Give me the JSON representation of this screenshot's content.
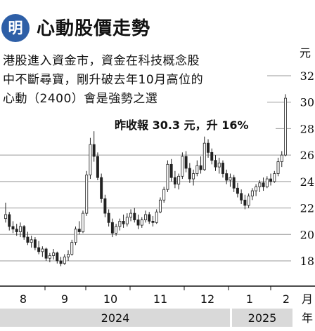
{
  "header": {
    "badge": "明",
    "title": "心動股價走勢"
  },
  "lead_lines": [
    "港股進入資金市，資金在科技概念股",
    "中不斷尋寶，剛升破去年10月高位的",
    "心動（2400）會是強勢之選"
  ],
  "highlight": "昨收報 30.3 元，升 16%",
  "colors": {
    "badge": "#2e5fa7",
    "grid": "#9a9a9a",
    "band": "#d9d9d9",
    "candle": "#222222"
  },
  "chart_data": {
    "type": "candlestick",
    "unit": "元",
    "x_unit": "月",
    "year_unit": "年",
    "ylim": [
      17,
      33
    ],
    "yticks": [
      18,
      20,
      22,
      24,
      26,
      28,
      30,
      32
    ],
    "months": [
      "8",
      "9",
      "10",
      "11",
      "12",
      "1",
      "2"
    ],
    "years": [
      "2024",
      "2025"
    ],
    "grid": true,
    "series": [
      {
        "o": 21.2,
        "h": 22.4,
        "l": 20.9,
        "c": 21.5
      },
      {
        "o": 21.5,
        "h": 21.7,
        "l": 20.3,
        "c": 20.6
      },
      {
        "o": 20.6,
        "h": 21.0,
        "l": 20.1,
        "c": 20.4
      },
      {
        "o": 20.4,
        "h": 20.8,
        "l": 19.9,
        "c": 20.2
      },
      {
        "o": 20.2,
        "h": 20.9,
        "l": 19.8,
        "c": 20.6
      },
      {
        "o": 20.6,
        "h": 20.7,
        "l": 19.6,
        "c": 19.8
      },
      {
        "o": 19.8,
        "h": 20.2,
        "l": 19.2,
        "c": 19.4
      },
      {
        "o": 19.4,
        "h": 19.9,
        "l": 19.0,
        "c": 19.6
      },
      {
        "o": 19.6,
        "h": 19.8,
        "l": 18.8,
        "c": 19.0
      },
      {
        "o": 19.0,
        "h": 19.5,
        "l": 18.5,
        "c": 18.7
      },
      {
        "o": 18.7,
        "h": 19.1,
        "l": 18.3,
        "c": 18.9
      },
      {
        "o": 18.9,
        "h": 19.0,
        "l": 18.0,
        "c": 18.2
      },
      {
        "o": 18.2,
        "h": 18.6,
        "l": 17.9,
        "c": 18.4
      },
      {
        "o": 18.4,
        "h": 18.9,
        "l": 18.1,
        "c": 18.6
      },
      {
        "o": 18.6,
        "h": 18.7,
        "l": 17.8,
        "c": 18.0
      },
      {
        "o": 18.0,
        "h": 18.3,
        "l": 17.6,
        "c": 17.8
      },
      {
        "o": 17.8,
        "h": 18.5,
        "l": 17.7,
        "c": 18.3
      },
      {
        "o": 18.3,
        "h": 18.8,
        "l": 18.0,
        "c": 18.5
      },
      {
        "o": 18.5,
        "h": 19.6,
        "l": 18.4,
        "c": 19.4
      },
      {
        "o": 19.4,
        "h": 20.6,
        "l": 19.2,
        "c": 20.4
      },
      {
        "o": 20.4,
        "h": 21.0,
        "l": 20.0,
        "c": 20.2
      },
      {
        "o": 20.2,
        "h": 21.8,
        "l": 20.1,
        "c": 21.6
      },
      {
        "o": 21.6,
        "h": 24.8,
        "l": 21.4,
        "c": 24.5
      },
      {
        "o": 24.5,
        "h": 27.3,
        "l": 24.2,
        "c": 26.8
      },
      {
        "o": 26.8,
        "h": 27.8,
        "l": 25.5,
        "c": 25.9
      },
      {
        "o": 25.9,
        "h": 26.2,
        "l": 24.1,
        "c": 24.3
      },
      {
        "o": 24.3,
        "h": 24.6,
        "l": 22.4,
        "c": 22.7
      },
      {
        "o": 22.7,
        "h": 23.0,
        "l": 21.3,
        "c": 21.6
      },
      {
        "o": 21.6,
        "h": 21.9,
        "l": 20.6,
        "c": 20.9
      },
      {
        "o": 20.9,
        "h": 21.2,
        "l": 19.8,
        "c": 20.1
      },
      {
        "o": 20.1,
        "h": 20.8,
        "l": 19.9,
        "c": 20.6
      },
      {
        "o": 20.6,
        "h": 21.2,
        "l": 20.3,
        "c": 21.0
      },
      {
        "o": 21.0,
        "h": 21.5,
        "l": 20.5,
        "c": 20.8
      },
      {
        "o": 20.8,
        "h": 21.6,
        "l": 20.6,
        "c": 21.3
      },
      {
        "o": 21.3,
        "h": 21.9,
        "l": 21.0,
        "c": 21.6
      },
      {
        "o": 21.6,
        "h": 22.0,
        "l": 20.9,
        "c": 21.1
      },
      {
        "o": 21.1,
        "h": 21.5,
        "l": 20.4,
        "c": 20.7
      },
      {
        "o": 20.7,
        "h": 21.3,
        "l": 20.5,
        "c": 21.1
      },
      {
        "o": 21.1,
        "h": 21.8,
        "l": 20.9,
        "c": 21.5
      },
      {
        "o": 21.5,
        "h": 21.7,
        "l": 20.8,
        "c": 21.0
      },
      {
        "o": 21.0,
        "h": 21.4,
        "l": 20.6,
        "c": 20.9
      },
      {
        "o": 20.9,
        "h": 21.9,
        "l": 20.8,
        "c": 21.7
      },
      {
        "o": 21.7,
        "h": 22.8,
        "l": 21.6,
        "c": 22.6
      },
      {
        "o": 22.6,
        "h": 23.6,
        "l": 22.4,
        "c": 23.4
      },
      {
        "o": 23.4,
        "h": 25.6,
        "l": 23.2,
        "c": 25.3
      },
      {
        "o": 25.3,
        "h": 25.7,
        "l": 24.0,
        "c": 24.3
      },
      {
        "o": 24.3,
        "h": 24.8,
        "l": 23.5,
        "c": 23.8
      },
      {
        "o": 23.8,
        "h": 24.6,
        "l": 23.4,
        "c": 24.4
      },
      {
        "o": 24.4,
        "h": 26.2,
        "l": 24.2,
        "c": 25.9
      },
      {
        "o": 25.9,
        "h": 26.3,
        "l": 24.7,
        "c": 25.0
      },
      {
        "o": 25.0,
        "h": 25.4,
        "l": 23.9,
        "c": 24.2
      },
      {
        "o": 24.2,
        "h": 24.9,
        "l": 23.7,
        "c": 24.6
      },
      {
        "o": 24.6,
        "h": 25.6,
        "l": 24.4,
        "c": 25.2
      },
      {
        "o": 25.2,
        "h": 25.9,
        "l": 24.6,
        "c": 24.9
      },
      {
        "o": 24.9,
        "h": 27.4,
        "l": 24.8,
        "c": 26.9
      },
      {
        "o": 26.9,
        "h": 27.2,
        "l": 25.8,
        "c": 26.2
      },
      {
        "o": 26.2,
        "h": 26.5,
        "l": 25.3,
        "c": 25.6
      },
      {
        "o": 25.6,
        "h": 26.0,
        "l": 24.8,
        "c": 25.1
      },
      {
        "o": 25.1,
        "h": 25.8,
        "l": 24.6,
        "c": 25.4
      },
      {
        "o": 25.4,
        "h": 25.6,
        "l": 24.3,
        "c": 24.6
      },
      {
        "o": 24.6,
        "h": 24.9,
        "l": 23.8,
        "c": 24.1
      },
      {
        "o": 24.1,
        "h": 24.6,
        "l": 23.6,
        "c": 24.3
      },
      {
        "o": 24.3,
        "h": 24.5,
        "l": 23.2,
        "c": 23.5
      },
      {
        "o": 23.5,
        "h": 23.9,
        "l": 22.8,
        "c": 23.1
      },
      {
        "o": 23.1,
        "h": 23.4,
        "l": 22.3,
        "c": 22.6
      },
      {
        "o": 22.6,
        "h": 23.0,
        "l": 21.9,
        "c": 22.2
      },
      {
        "o": 22.2,
        "h": 23.1,
        "l": 22.0,
        "c": 22.9
      },
      {
        "o": 22.9,
        "h": 23.5,
        "l": 22.6,
        "c": 23.3
      },
      {
        "o": 23.3,
        "h": 23.8,
        "l": 22.9,
        "c": 23.6
      },
      {
        "o": 23.6,
        "h": 24.1,
        "l": 23.2,
        "c": 23.9
      },
      {
        "o": 23.9,
        "h": 24.3,
        "l": 23.3,
        "c": 23.6
      },
      {
        "o": 23.6,
        "h": 24.4,
        "l": 23.5,
        "c": 24.2
      },
      {
        "o": 24.2,
        "h": 24.6,
        "l": 23.7,
        "c": 24.0
      },
      {
        "o": 24.0,
        "h": 24.8,
        "l": 23.9,
        "c": 24.6
      },
      {
        "o": 24.6,
        "h": 25.8,
        "l": 24.4,
        "c": 25.5
      },
      {
        "o": 25.5,
        "h": 26.3,
        "l": 25.1,
        "c": 26.0
      },
      {
        "o": 26.0,
        "h": 30.6,
        "l": 25.9,
        "c": 30.3
      }
    ]
  }
}
